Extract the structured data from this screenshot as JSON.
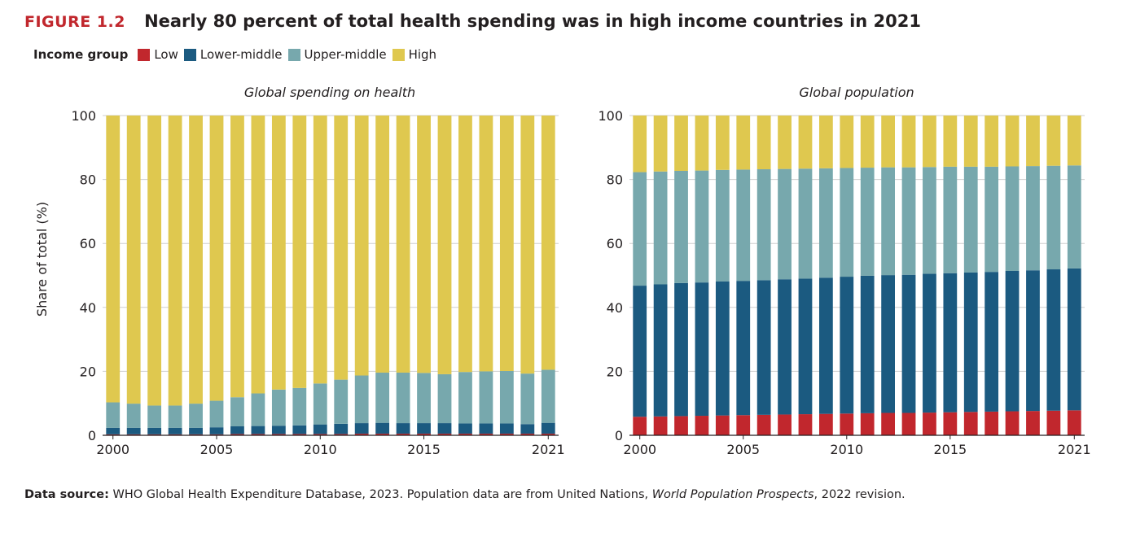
{
  "figure": {
    "label": "FIGURE 1.2",
    "title": "Nearly 80 percent of total health spending was in high income countries in 2021"
  },
  "legend": {
    "title": "Income group",
    "items": [
      {
        "label": "Low",
        "color": "#c1272d"
      },
      {
        "label": "Lower-middle",
        "color": "#1b5a80"
      },
      {
        "label": "Upper-middle",
        "color": "#77a8ad"
      },
      {
        "label": "High",
        "color": "#dfc84f"
      }
    ]
  },
  "footer": {
    "label": "Data source:",
    "text_before": " WHO Global Health Expenditure Database, 2023. Population data are from United Nations, ",
    "italic": "World Population Prospects",
    "text_after": ", 2022 revision."
  },
  "chart_data": [
    {
      "type": "bar",
      "stacked": true,
      "title": "Global spending on health",
      "ylabel": "Share of total (%)",
      "xlabel": "",
      "ylim": [
        0,
        100
      ],
      "yticks": [
        0,
        20,
        40,
        60,
        80,
        100
      ],
      "x_tick_labels": [
        "2000",
        "2005",
        "2010",
        "2015",
        "2021"
      ],
      "categories": [
        "2000",
        "2001",
        "2002",
        "2003",
        "2004",
        "2005",
        "2006",
        "2007",
        "2008",
        "2009",
        "2010",
        "2011",
        "2012",
        "2013",
        "2014",
        "2015",
        "2016",
        "2017",
        "2018",
        "2019",
        "2020",
        "2021"
      ],
      "series": [
        {
          "name": "Low",
          "values": [
            0.3,
            0.3,
            0.3,
            0.3,
            0.3,
            0.3,
            0.4,
            0.4,
            0.4,
            0.4,
            0.4,
            0.4,
            0.5,
            0.5,
            0.5,
            0.5,
            0.5,
            0.5,
            0.5,
            0.5,
            0.5,
            0.5
          ]
        },
        {
          "name": "Lower-middle",
          "values": [
            2.0,
            2.0,
            2.0,
            2.0,
            2.0,
            2.2,
            2.4,
            2.5,
            2.6,
            2.7,
            3.0,
            3.2,
            3.3,
            3.4,
            3.3,
            3.3,
            3.3,
            3.2,
            3.2,
            3.2,
            3.0,
            3.4
          ]
        },
        {
          "name": "Upper-middle",
          "values": [
            8.0,
            7.6,
            7.0,
            7.0,
            7.6,
            8.3,
            9.1,
            10.2,
            11.3,
            11.7,
            12.8,
            13.8,
            14.9,
            15.7,
            15.8,
            15.7,
            15.3,
            16.1,
            16.3,
            16.4,
            15.8,
            16.6
          ]
        },
        {
          "name": "High",
          "values": [
            89.7,
            90.1,
            90.7,
            90.7,
            90.1,
            89.2,
            88.1,
            86.9,
            85.7,
            85.2,
            83.8,
            82.6,
            81.3,
            80.4,
            80.4,
            80.5,
            80.9,
            80.2,
            80.0,
            79.9,
            80.7,
            79.5
          ]
        }
      ]
    },
    {
      "type": "bar",
      "stacked": true,
      "title": "Global population",
      "ylabel": "",
      "xlabel": "",
      "ylim": [
        0,
        100
      ],
      "yticks": [
        0,
        20,
        40,
        60,
        80,
        100
      ],
      "x_tick_labels": [
        "2000",
        "2005",
        "2010",
        "2015",
        "2021"
      ],
      "categories": [
        "2000",
        "2001",
        "2002",
        "2003",
        "2004",
        "2005",
        "2006",
        "2007",
        "2008",
        "2009",
        "2010",
        "2011",
        "2012",
        "2013",
        "2014",
        "2015",
        "2016",
        "2017",
        "2018",
        "2019",
        "2020",
        "2021"
      ],
      "series": [
        {
          "name": "Low",
          "values": [
            5.8,
            5.9,
            6.0,
            6.1,
            6.2,
            6.3,
            6.4,
            6.5,
            6.6,
            6.7,
            6.8,
            6.9,
            7.0,
            7.0,
            7.1,
            7.2,
            7.3,
            7.4,
            7.5,
            7.6,
            7.7,
            7.8
          ]
        },
        {
          "name": "Lower-middle",
          "values": [
            41.0,
            41.3,
            41.6,
            41.7,
            41.9,
            42.0,
            42.1,
            42.3,
            42.4,
            42.6,
            42.8,
            43.0,
            43.1,
            43.2,
            43.4,
            43.5,
            43.6,
            43.7,
            43.9,
            44.0,
            44.2,
            44.4
          ]
        },
        {
          "name": "Upper-middle",
          "values": [
            35.5,
            35.3,
            35.1,
            35.0,
            34.9,
            34.8,
            34.7,
            34.5,
            34.4,
            34.2,
            34.0,
            33.8,
            33.7,
            33.6,
            33.4,
            33.3,
            33.1,
            32.9,
            32.7,
            32.6,
            32.4,
            32.2
          ]
        },
        {
          "name": "High",
          "values": [
            17.7,
            17.5,
            17.3,
            17.2,
            17.0,
            16.9,
            16.8,
            16.7,
            16.6,
            16.5,
            16.4,
            16.3,
            16.2,
            16.2,
            16.1,
            16.0,
            16.0,
            16.0,
            15.9,
            15.8,
            15.7,
            15.6
          ]
        }
      ]
    }
  ]
}
